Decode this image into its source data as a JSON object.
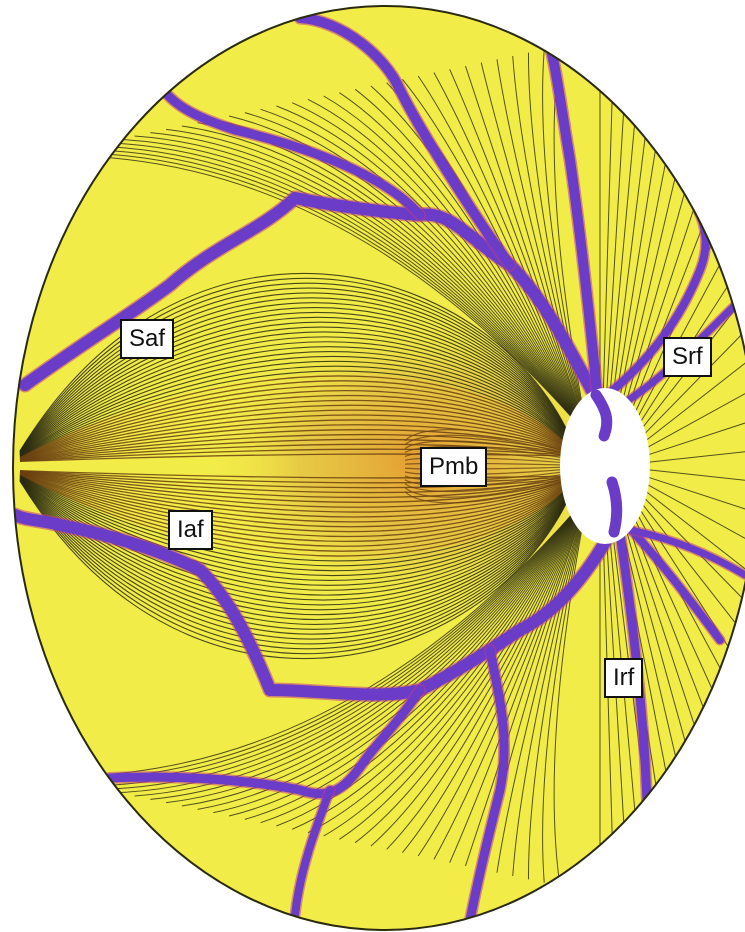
{
  "diagram": {
    "labels": {
      "saf": "Saf",
      "srf": "Srf",
      "pmb": "Pmb",
      "iaf": "Iaf",
      "irf": "Irf"
    },
    "colors": {
      "background": "#ffffff",
      "fundus": "#f2ec48",
      "fiber": "#2a2a10",
      "papillomacular_fiber": "#6a4010",
      "vessel": "#6a3cc8",
      "vessel_edge": "#c03a86",
      "optic_disc": "#ffffff"
    }
  }
}
